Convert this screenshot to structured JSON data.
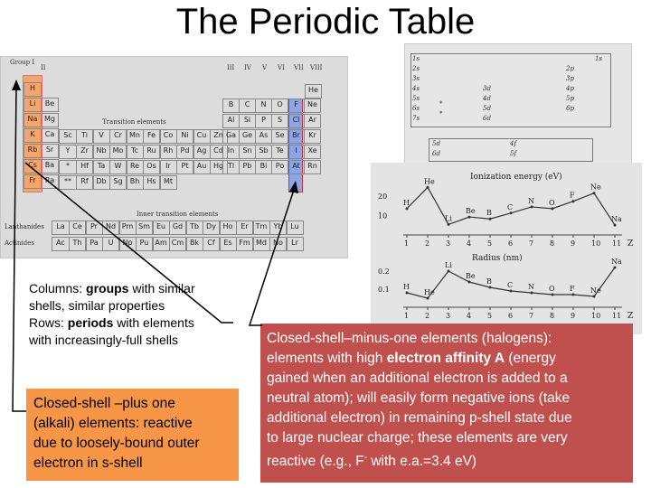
{
  "slide": {
    "title": "The Periodic Table"
  },
  "periodic_table": {
    "group_label": "Group I",
    "group_numbers": [
      "II",
      "III",
      "IV",
      "V",
      "VI",
      "VII",
      "VIII"
    ],
    "transition_label": "Transition elements",
    "inner_transition_label": "Inner transition elements",
    "lanthanides_label": "Lanthanides",
    "actinides_label": "Actinides",
    "alkali_column": [
      "H",
      "Li",
      "Na",
      "K",
      "Rb",
      "Cs",
      "Fr"
    ],
    "group2_column": [
      "Be",
      "Mg",
      "Ca",
      "Sr",
      "Ba",
      "Ra"
    ],
    "transition_rows": [
      [
        "Sc",
        "Ti",
        "V",
        "Cr",
        "Mn",
        "Fe",
        "Co",
        "Ni",
        "Cu",
        "Zn"
      ],
      [
        "Y",
        "Zr",
        "Nb",
        "Mo",
        "Tc",
        "Ru",
        "Rh",
        "Pd",
        "Ag",
        "Cd"
      ],
      [
        "*",
        "Hf",
        "Ta",
        "W",
        "Re",
        "Os",
        "Ir",
        "Pt",
        "Au",
        "Hg"
      ],
      [
        "**",
        "Rf",
        "Db",
        "Sg",
        "Bh",
        "Hs",
        "Mt",
        "",
        "",
        ""
      ]
    ],
    "pblock_rows": [
      [
        "B",
        "C",
        "N",
        "O",
        "F",
        "Ne"
      ],
      [
        "Al",
        "Si",
        "P",
        "S",
        "Cl",
        "Ar"
      ],
      [
        "Ga",
        "Ge",
        "As",
        "Se",
        "Br",
        "Kr"
      ],
      [
        "In",
        "Sn",
        "Sb",
        "Te",
        "I",
        "Xe"
      ],
      [
        "Tl",
        "Pb",
        "Bi",
        "Po",
        "At",
        "Rn"
      ]
    ],
    "helium": "He",
    "lanthanide_row": [
      "La",
      "Ce",
      "Pr",
      "Nd",
      "Pm",
      "Sm",
      "Eu",
      "Gd",
      "Tb",
      "Dy",
      "Ho",
      "Er",
      "Tm",
      "Yb",
      "Lu"
    ],
    "actinide_row": [
      "Ac",
      "Th",
      "Pa",
      "U",
      "Np",
      "Pu",
      "Am",
      "Cm",
      "Bk",
      "Cf",
      "Es",
      "Fm",
      "Md",
      "No",
      "Lr"
    ]
  },
  "shell_diagram": {
    "left_labels": [
      "1s",
      "2s",
      "3s",
      "4s",
      "5s",
      "6s",
      "7s"
    ],
    "top_right": "1s",
    "right_labels": [
      "2p",
      "3p",
      "4p",
      "5p",
      "6p"
    ],
    "d_labels": [
      "3d",
      "4d",
      "5d",
      "6d"
    ],
    "star_labels": [
      "*",
      "*"
    ],
    "f_left": [
      "5d",
      "6d"
    ],
    "f_right": [
      "4f",
      "5f"
    ]
  },
  "chart_data": [
    {
      "type": "line",
      "title": "Ionization energy (eV)",
      "xlabel": "Z",
      "x": [
        1,
        2,
        3,
        4,
        5,
        6,
        7,
        8,
        9,
        10,
        11
      ],
      "series": [
        {
          "values": [
            13.6,
            24.6,
            5.4,
            9.3,
            8.3,
            11.3,
            14.5,
            13.6,
            17.4,
            21.6,
            5.1
          ]
        }
      ],
      "point_labels": [
        "H",
        "He",
        "Li",
        "Be",
        "B",
        "C",
        "N",
        "O",
        "F",
        "Ne",
        "Na"
      ],
      "yticks": [
        "20",
        "10"
      ],
      "ylim": [
        0,
        28
      ],
      "xticks": [
        "1",
        "2",
        "3",
        "4",
        "5",
        "6",
        "7",
        "8",
        "9",
        "10",
        "11"
      ]
    },
    {
      "type": "line",
      "title": "Radius (nm)",
      "xlabel": "Z",
      "x": [
        1,
        2,
        3,
        4,
        5,
        6,
        7,
        8,
        9,
        10,
        11
      ],
      "series": [
        {
          "values": [
            0.08,
            0.05,
            0.2,
            0.14,
            0.11,
            0.09,
            0.08,
            0.07,
            0.07,
            0.06,
            0.22
          ]
        }
      ],
      "point_labels": [
        "H",
        "He",
        "Li",
        "Be",
        "B",
        "C",
        "N",
        "O",
        "F",
        "Ne",
        "Na"
      ],
      "yticks": [
        "0.2",
        "0.1"
      ],
      "ylim": [
        0,
        0.25
      ],
      "xticks": [
        "1",
        "2",
        "3",
        "4",
        "5",
        "6",
        "7",
        "8",
        "9",
        "10",
        "11"
      ]
    }
  ],
  "notes": {
    "columns_rows_lines": [
      {
        "pre": "Columns:  ",
        "bold": "groups",
        "post": " with similar"
      },
      {
        "pre": "shells, similar properties",
        "bold": "",
        "post": ""
      },
      {
        "pre": "Rows:  ",
        "bold": "periods",
        "post": " with elements"
      },
      {
        "pre": "with increasingly-full shells",
        "bold": "",
        "post": ""
      }
    ],
    "alkali_lines": [
      "Closed-shell –plus one",
      "(alkali) elements:  reactive",
      "due to loosely-bound outer",
      "electron in s-shell"
    ],
    "halogen_lines": [
      {
        "pre": "Closed-shell–minus-one elements (halogens):",
        "bold": "",
        "post": ""
      },
      {
        "pre": "elements with high ",
        "bold": "electron affinity A",
        "post": " (energy"
      },
      {
        "pre": "gained when an additional electron is added to a",
        "bold": "",
        "post": ""
      },
      {
        "pre": "neutral atom); will easily form negative ions (take",
        "bold": "",
        "post": ""
      },
      {
        "pre": "additional electron) in remaining p-shell state due",
        "bold": "",
        "post": ""
      },
      {
        "pre": "to large nuclear charge; these elements are very",
        "bold": "",
        "post": ""
      }
    ],
    "halogen_last": {
      "pre": "reactive (e.g., F",
      "sup": "-",
      "post": " with e.a.=3.4 eV)"
    }
  },
  "colors": {
    "alkali_highlight": "#f5a46a",
    "halogen_highlight": "#8aa6e8",
    "alkali_box": "#f79646",
    "halogen_box": "#c0504d",
    "scan_bg": "#dcdcdc"
  }
}
